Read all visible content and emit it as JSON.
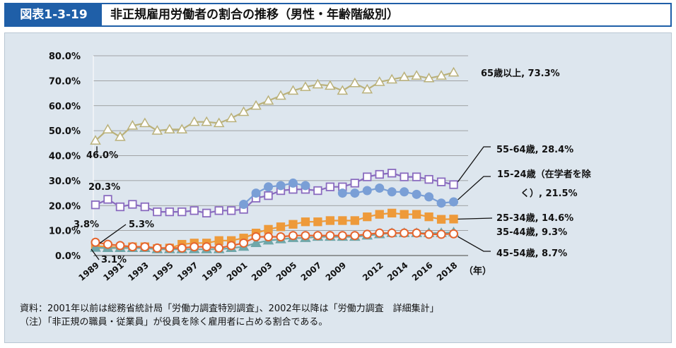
{
  "figure_label": "図表1-3-19",
  "title": "非正規雇用労働者の割合の推移（男性・年齢階級別）",
  "notes": {
    "source": "資料：2001年以前は総務省統計局「労働力調査特別調査」、2002年以降は「労働力調査　詳細集計」",
    "note": "（注）「非正規の職員・従業員」が役員を除く雇用者に占める割合である。"
  },
  "chart_data": {
    "type": "line",
    "xlabel": "（年）",
    "ylabel": "",
    "x": [
      1989,
      1990,
      1991,
      1992,
      1993,
      1994,
      1995,
      1996,
      1997,
      1998,
      1999,
      2000,
      2001,
      2002,
      2003,
      2004,
      2005,
      2006,
      2007,
      2008,
      2009,
      2010,
      2011,
      2012,
      2013,
      2014,
      2015,
      2016,
      2017,
      2018,
      2019
    ],
    "x_tick_labels": [
      "1989",
      "1991",
      "1993",
      "1995",
      "1997",
      "1999",
      "2001",
      "2003",
      "2005",
      "2007",
      "2009",
      "2012",
      "2014",
      "2016",
      "2018"
    ],
    "ylim": [
      0,
      80
    ],
    "y_tick_labels": [
      "0.0%",
      "10.0%",
      "20.0%",
      "30.0%",
      "40.0%",
      "50.0%",
      "60.0%",
      "70.0%",
      "80.0%"
    ],
    "grid": true,
    "series": [
      {
        "id": "s65",
        "color": "#bab17a",
        "marker": "triangle",
        "fill": "#ffffff",
        "values": [
          46.0,
          50.5,
          47.5,
          52.0,
          53.0,
          50.0,
          50.5,
          50.5,
          53.5,
          53.5,
          53.0,
          55.0,
          57.5,
          60.0,
          62.0,
          64.0,
          66.0,
          67.5,
          68.5,
          68.0,
          66.0,
          69.0,
          66.5,
          69.5,
          70.5,
          71.5,
          72.0,
          71.0,
          72.0,
          73.3,
          null
        ]
      },
      {
        "id": "s55",
        "color": "#8a6bbf",
        "marker": "square",
        "fill": "#ffffff",
        "values": [
          20.3,
          22.5,
          19.5,
          20.5,
          19.5,
          17.5,
          17.5,
          17.5,
          18.0,
          17.0,
          18.0,
          18.0,
          18.5,
          23.0,
          24.0,
          26.0,
          26.5,
          26.5,
          26.0,
          27.5,
          27.5,
          29.0,
          31.5,
          32.5,
          33.0,
          31.5,
          31.5,
          30.5,
          29.5,
          28.4,
          null
        ]
      },
      {
        "id": "s15",
        "color": "#7a9fd6",
        "marker": "circle-filled",
        "fill": "#7a9fd6",
        "values": [
          null,
          null,
          null,
          null,
          null,
          null,
          null,
          null,
          null,
          null,
          null,
          null,
          20.5,
          25.0,
          27.5,
          28.0,
          29.0,
          28.0,
          null,
          null,
          25.0,
          25.0,
          26.0,
          27.0,
          25.5,
          25.5,
          24.5,
          23.5,
          21.0,
          21.5,
          null
        ]
      },
      {
        "id": "s25",
        "color": "#ee9a3a",
        "marker": "square-filled",
        "fill": "#ee9a3a",
        "values": [
          3.8,
          3.6,
          3.2,
          3.5,
          3.5,
          2.8,
          3.0,
          4.5,
          5.0,
          5.0,
          6.0,
          6.0,
          7.0,
          9.0,
          10.5,
          11.5,
          12.5,
          13.5,
          13.5,
          14.0,
          14.0,
          14.0,
          15.5,
          16.5,
          17.0,
          16.5,
          16.5,
          15.5,
          14.5,
          14.6,
          null
        ]
      },
      {
        "id": "s35",
        "color": "#6fa7a9",
        "marker": "triangle-filled",
        "fill": "#6fa7a9",
        "values": [
          3.1,
          3.0,
          3.0,
          3.0,
          3.0,
          2.5,
          2.5,
          2.5,
          2.5,
          2.5,
          2.5,
          3.0,
          3.5,
          5.0,
          6.0,
          6.5,
          7.0,
          7.0,
          7.5,
          7.5,
          7.5,
          7.5,
          8.0,
          8.5,
          9.0,
          9.0,
          9.0,
          9.0,
          9.0,
          9.3,
          null
        ]
      },
      {
        "id": "s45",
        "color": "#e5652e",
        "marker": "circle",
        "fill": "#ffffff",
        "values": [
          5.3,
          4.5,
          4.0,
          3.5,
          3.5,
          3.0,
          3.0,
          3.0,
          3.5,
          3.5,
          3.0,
          4.0,
          5.0,
          7.5,
          7.5,
          7.5,
          8.0,
          8.0,
          8.0,
          8.0,
          8.0,
          8.0,
          8.5,
          9.0,
          9.0,
          9.0,
          9.0,
          8.5,
          8.5,
          8.7,
          null
        ]
      }
    ],
    "annotations": {
      "a65_label": "65歳以上, 73.3%",
      "a55_label": "55-64歳, 28.4%",
      "a15_line1": "15-24歳（在学者を除",
      "a15_line2": "く）, 21.5%",
      "a25_label": "25-34歳, 14.6%",
      "a35_label": "35-44歳, 9.3%",
      "a45_label": "45-54歳, 8.7%",
      "start65": "46.0%",
      "start55": "20.3%",
      "start25": "3.8%",
      "start45": "5.3%",
      "start35": "3.1%"
    }
  }
}
